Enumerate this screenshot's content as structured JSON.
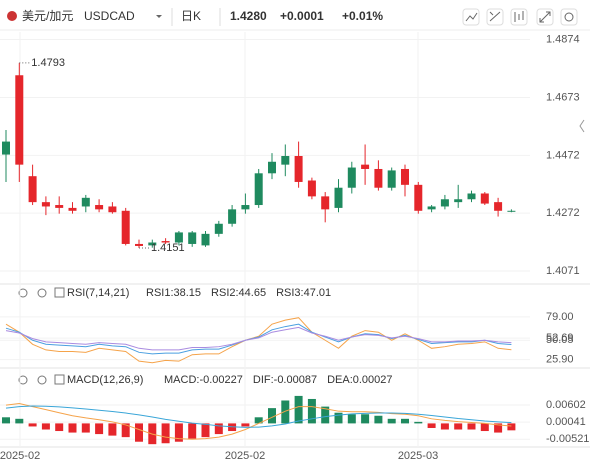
{
  "toolbar": {
    "pair": "美元/加元",
    "symbol": "USDCAD",
    "period": "日K",
    "price": "1.4280",
    "change": "+0.0001",
    "change_pct": "+0.01%"
  },
  "x_axis": {
    "labels": [
      "2025-02",
      "2025-02",
      "2025-03"
    ]
  },
  "chart_data": [
    {
      "type": "candlestick",
      "open": [
        1.4475,
        1.475,
        1.44,
        1.431,
        1.43,
        1.429,
        1.4295,
        1.43,
        1.4295,
        1.428,
        1.4165,
        1.416,
        1.4175,
        1.417,
        1.4165,
        1.416,
        1.42,
        1.4235,
        1.4285,
        1.43,
        1.441,
        1.444,
        1.447,
        1.4385,
        1.433,
        1.429,
        1.436,
        1.444,
        1.4425,
        1.436,
        1.4425,
        1.437,
        1.4285,
        1.4295,
        1.431,
        1.432,
        1.434,
        1.431,
        1.428
      ],
      "high": [
        1.456,
        1.4793,
        1.444,
        1.433,
        1.433,
        1.431,
        1.4335,
        1.432,
        1.431,
        1.429,
        1.418,
        1.418,
        1.4185,
        1.421,
        1.421,
        1.421,
        1.4245,
        1.43,
        1.434,
        1.4425,
        1.448,
        1.451,
        1.452,
        1.4395,
        1.4345,
        1.439,
        1.445,
        1.451,
        1.4455,
        1.443,
        1.444,
        1.438,
        1.43,
        1.4335,
        1.437,
        1.435,
        1.4345,
        1.4325,
        1.4285
      ],
      "low": [
        1.438,
        1.438,
        1.43,
        1.4265,
        1.427,
        1.427,
        1.4275,
        1.4275,
        1.427,
        1.416,
        1.4151,
        1.4152,
        1.4165,
        1.416,
        1.4155,
        1.4155,
        1.419,
        1.4225,
        1.427,
        1.429,
        1.439,
        1.44,
        1.436,
        1.432,
        1.424,
        1.4275,
        1.434,
        1.437,
        1.435,
        1.435,
        1.433,
        1.427,
        1.4275,
        1.4285,
        1.429,
        1.431,
        1.43,
        1.426,
        1.4275
      ],
      "close": [
        1.452,
        1.444,
        1.431,
        1.4295,
        1.429,
        1.428,
        1.4325,
        1.4285,
        1.4275,
        1.4165,
        1.4158,
        1.417,
        1.417,
        1.4205,
        1.4205,
        1.42,
        1.4235,
        1.4285,
        1.43,
        1.441,
        1.445,
        1.447,
        1.438,
        1.433,
        1.4285,
        1.436,
        1.443,
        1.4425,
        1.436,
        1.442,
        1.437,
        1.428,
        1.4295,
        1.432,
        1.432,
        1.434,
        1.4305,
        1.428,
        1.428
      ],
      "up_color": "#1f8a5f",
      "down_color": "#e5262b",
      "ylim": [
        1.404,
        1.49
      ],
      "yticks": [
        1.4874,
        1.4673,
        1.4472,
        1.4272,
        1.4071
      ],
      "max_label": 1.4793,
      "min_label": 1.4151
    },
    {
      "type": "line",
      "title": "RSI(7,14,21)",
      "series": [
        {
          "name": "RSI1:38.15",
          "color": "#f5a34a",
          "values": [
            70,
            60,
            45,
            38,
            36,
            36,
            35,
            40,
            38,
            36,
            24,
            22,
            25,
            24,
            32,
            33,
            33,
            42,
            50,
            55,
            70,
            75,
            78,
            60,
            50,
            40,
            55,
            62,
            60,
            50,
            58,
            50,
            40,
            42,
            45,
            46,
            48,
            40,
            38.15
          ]
        },
        {
          "name": "RSI2:44.65",
          "color": "#4a9fe0",
          "values": [
            65,
            60,
            50,
            45,
            44,
            43,
            42,
            45,
            43,
            42,
            35,
            33,
            34,
            34,
            38,
            39,
            39,
            44,
            50,
            54,
            63,
            67,
            70,
            60,
            54,
            48,
            54,
            58,
            57,
            52,
            56,
            51,
            46,
            47,
            48,
            48,
            50,
            46,
            44.65
          ]
        },
        {
          "name": "RSI3:47.01",
          "color": "#a98be0",
          "values": [
            62,
            59,
            52,
            48,
            47,
            46,
            45,
            47,
            46,
            45,
            40,
            38,
            38,
            38,
            41,
            41,
            42,
            45,
            50,
            53,
            60,
            63,
            66,
            59,
            55,
            50,
            54,
            57,
            56,
            53,
            55,
            52,
            48,
            48,
            49,
            49,
            50,
            48,
            47.01
          ]
        }
      ],
      "ylim": [
        18,
        105
      ],
      "yticks": [
        {
          "value": 79,
          "label": "79.00"
        },
        52.69,
        50.05,
        {
          "value": 25.9,
          "label": "25.90"
        }
      ]
    },
    {
      "type": "macd",
      "title": "MACD(12,26,9)",
      "series": [
        {
          "name": "MACD:-0.00227",
          "color": "#a98be0",
          "up_color": "#1f8a5f",
          "down_color": "#e5262b",
          "values": [
            0.002,
            0.0015,
            -0.001,
            -0.002,
            -0.0025,
            -0.003,
            -0.003,
            -0.0035,
            -0.004,
            -0.0045,
            -0.006,
            -0.0068,
            -0.0065,
            -0.006,
            -0.005,
            -0.0045,
            -0.0035,
            -0.0025,
            -0.001,
            0.002,
            0.005,
            0.0075,
            0.009,
            0.008,
            0.0055,
            0.0035,
            0.003,
            0.003,
            0.0025,
            0.0015,
            0.0015,
            0.0005,
            -0.0015,
            -0.002,
            -0.002,
            -0.002,
            -0.0025,
            -0.003,
            -0.00227
          ]
        },
        {
          "name": "DIF:-0.00087",
          "color": "#f5a34a",
          "values": [
            0.006,
            0.0065,
            0.0055,
            0.0045,
            0.0035,
            0.0025,
            0.0018,
            0.0012,
            0.0005,
            -0.0005,
            -0.002,
            -0.0035,
            -0.0045,
            -0.005,
            -0.0052,
            -0.005,
            -0.0045,
            -0.0035,
            -0.002,
            0.0,
            0.002,
            0.004,
            0.0055,
            0.0055,
            0.0048,
            0.004,
            0.0038,
            0.0038,
            0.0036,
            0.0032,
            0.003,
            0.0025,
            0.0015,
            0.001,
            0.0006,
            0.0003,
            0.0,
            -0.0005,
            -0.00087
          ]
        },
        {
          "name": "DEA:0.00027",
          "color": "#3aa6d8",
          "values": [
            0.005,
            0.0055,
            0.0057,
            0.0056,
            0.0054,
            0.0051,
            0.0047,
            0.0043,
            0.0039,
            0.0034,
            0.0028,
            0.0021,
            0.0013,
            0.0007,
            0.0001,
            -0.0003,
            -0.0008,
            -0.0011,
            -0.0013,
            -0.0012,
            -0.0008,
            -0.0002,
            0.0008,
            0.0015,
            0.0022,
            0.0027,
            0.0031,
            0.0033,
            0.0034,
            0.0034,
            0.0033,
            0.003,
            0.0026,
            0.0021,
            0.0016,
            0.0012,
            0.0008,
            0.0005,
            0.00027
          ]
        }
      ],
      "ylim": [
        -0.0074,
        0.0129
      ],
      "yticks": [
        0.00602,
        0.00041,
        -0.00521
      ]
    }
  ]
}
